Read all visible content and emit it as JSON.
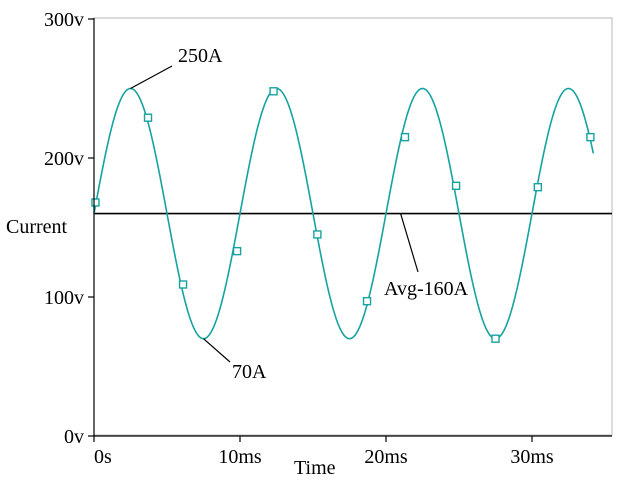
{
  "chart_data": {
    "type": "line",
    "title": "",
    "xlabel": "Time",
    "ylabel": "Current",
    "x_unit": "ms",
    "xlim": [
      0,
      35
    ],
    "ylim": [
      0,
      300
    ],
    "x_ticks": [
      0,
      10,
      20,
      30
    ],
    "x_tick_labels": [
      "0s",
      "10ms",
      "20ms",
      "30ms"
    ],
    "y_ticks": [
      0,
      100,
      200,
      300
    ],
    "y_tick_labels": [
      "0v",
      "100v",
      "200v",
      "300v"
    ],
    "grid": false,
    "series": [
      {
        "color": "#16a3a0",
        "marker": "hollow-square",
        "waveform": {
          "mean": 160,
          "amplitude": 90,
          "period_ms": 10,
          "peak_at_ms": 2.5,
          "start_ms": 0,
          "end_ms": 34.2
        },
        "markers": [
          {
            "x": 0.1,
            "y": 168
          },
          {
            "x": 3.7,
            "y": 229
          },
          {
            "x": 6.1,
            "y": 109
          },
          {
            "x": 9.8,
            "y": 133
          },
          {
            "x": 12.3,
            "y": 248
          },
          {
            "x": 15.3,
            "y": 145
          },
          {
            "x": 18.7,
            "y": 97
          },
          {
            "x": 21.3,
            "y": 215
          },
          {
            "x": 24.8,
            "y": 180
          },
          {
            "x": 27.5,
            "y": 70
          },
          {
            "x": 30.4,
            "y": 179
          },
          {
            "x": 34.0,
            "y": 215
          }
        ]
      }
    ],
    "reference_lines": [
      {
        "orientation": "horizontal",
        "y": 160,
        "color": "#000000"
      }
    ],
    "annotations": [
      {
        "text": "250A",
        "x": 2.5,
        "y": 250
      },
      {
        "text": "70A",
        "x": 7.5,
        "y": 70
      },
      {
        "text": "Avg-160A",
        "x": 21.0,
        "y": 160
      }
    ]
  }
}
